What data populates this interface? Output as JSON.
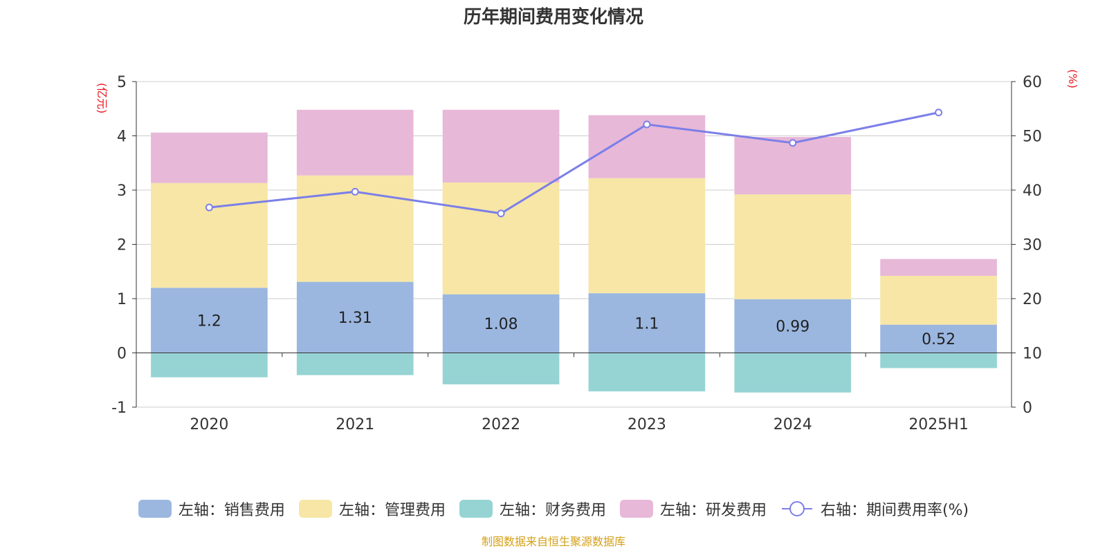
{
  "chart_data": {
    "type": "bar",
    "title": "历年期间费用变化情况",
    "categories": [
      "2020",
      "2021",
      "2022",
      "2023",
      "2024",
      "2025H1"
    ],
    "left_axis": {
      "label": "(亿元)",
      "range": [
        -1,
        5
      ],
      "ticks": [
        "-1",
        "0",
        "1",
        "2",
        "3",
        "4",
        "5"
      ]
    },
    "right_axis": {
      "label": "(%)",
      "range": [
        0,
        60
      ],
      "ticks": [
        "0",
        "10",
        "20",
        "30",
        "40",
        "50",
        "60"
      ]
    },
    "series": [
      {
        "name": "左轴：销售费用",
        "type": "bar",
        "axis": "left",
        "color": "#9bb7e0",
        "values": [
          1.2,
          1.31,
          1.08,
          1.1,
          0.99,
          0.52
        ],
        "data_labels": [
          "1.2",
          "1.31",
          "1.08",
          "1.1",
          "0.99",
          "0.52"
        ]
      },
      {
        "name": "左轴：管理费用",
        "type": "bar",
        "axis": "left",
        "color": "#f7e6a6",
        "values": [
          1.93,
          1.96,
          2.06,
          2.12,
          1.93,
          0.9
        ]
      },
      {
        "name": "左轴：财务费用",
        "type": "bar",
        "axis": "left",
        "color": "#96d4d4",
        "values": [
          -0.45,
          -0.41,
          -0.58,
          -0.71,
          -0.73,
          -0.28
        ]
      },
      {
        "name": "左轴：研发费用",
        "type": "bar",
        "axis": "left",
        "color": "#e8b8d8",
        "values": [
          0.93,
          1.21,
          1.34,
          1.16,
          1.06,
          0.31
        ]
      },
      {
        "name": "右轴：期间费用率(%)",
        "type": "line",
        "axis": "right",
        "color": "#7b7fe8",
        "values": [
          36.8,
          39.7,
          35.7,
          52.1,
          48.7,
          54.3
        ]
      }
    ],
    "grid": true,
    "legend_position": "bottom"
  },
  "source_note": "制图数据来自恒生聚源数据库"
}
